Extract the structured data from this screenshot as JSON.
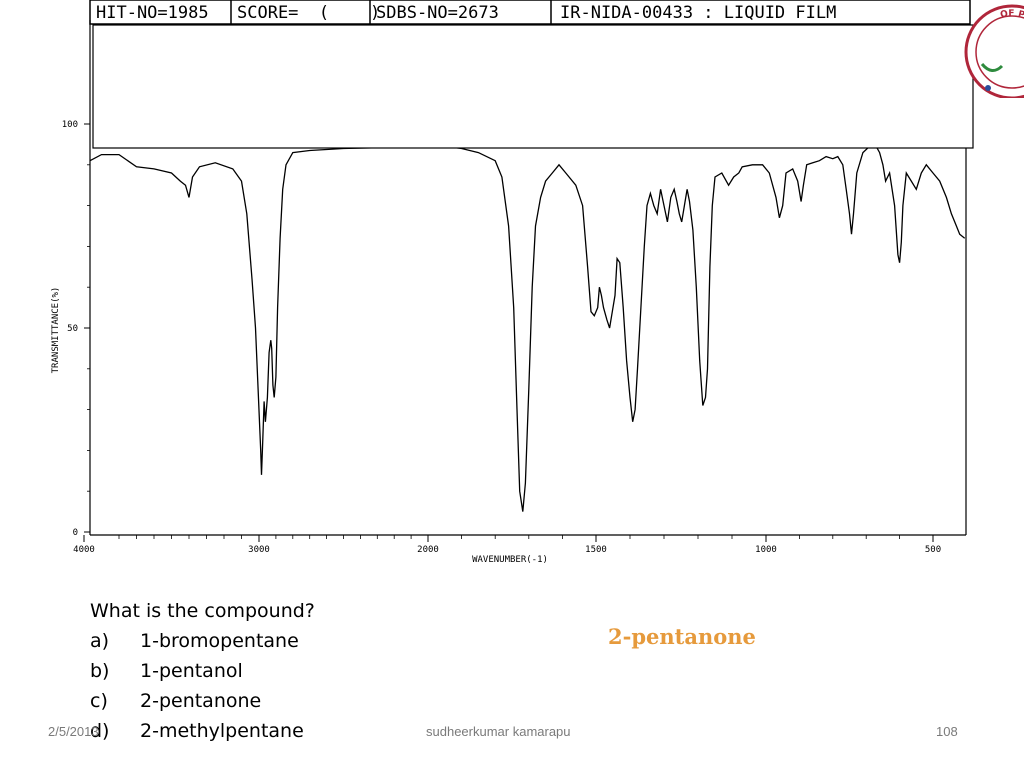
{
  "header": {
    "hit_no": "HIT-NO=1985",
    "score": "SCORE=  (    )",
    "sdbs_no": "SDBS-NO=2673",
    "sample": "IR-NIDA-00433 : LIQUID FILM"
  },
  "seal": {
    "text": "OF PHARMACY",
    "color": "#c0392b"
  },
  "chart_data": {
    "type": "line",
    "title": "",
    "xlabel": "WAVENUMBER(-1)",
    "ylabel": "TRANSMITTANCE(%)",
    "xlim": [
      4000,
      400
    ],
    "ylim": [
      0,
      100
    ],
    "x_reversed": true,
    "x_ticks": [
      "4000",
      "3000",
      "2000",
      "1500",
      "1000",
      "500"
    ],
    "x_tick_values": [
      4000,
      3000,
      2000,
      1500,
      1000,
      500
    ],
    "y_ticks": [
      "0",
      "50",
      "100"
    ],
    "y_tick_values": [
      0,
      50,
      100
    ],
    "grid": false,
    "series": [
      {
        "color": "#000000",
        "points": [
          [
            4000,
            91
          ],
          [
            3900,
            92.5
          ],
          [
            3800,
            92.5
          ],
          [
            3700,
            89.5
          ],
          [
            3600,
            89
          ],
          [
            3500,
            88
          ],
          [
            3450,
            86
          ],
          [
            3420,
            85
          ],
          [
            3400,
            82
          ],
          [
            3380,
            87
          ],
          [
            3340,
            89.5
          ],
          [
            3250,
            90.5
          ],
          [
            3150,
            89
          ],
          [
            3100,
            86
          ],
          [
            3070,
            78
          ],
          [
            3040,
            62
          ],
          [
            3020,
            50
          ],
          [
            3005,
            35
          ],
          [
            2990,
            20
          ],
          [
            2985,
            14
          ],
          [
            2978,
            22
          ],
          [
            2970,
            32
          ],
          [
            2962,
            27
          ],
          [
            2950,
            33
          ],
          [
            2940,
            44
          ],
          [
            2930,
            47
          ],
          [
            2925,
            45
          ],
          [
            2918,
            36
          ],
          [
            2910,
            33
          ],
          [
            2900,
            38
          ],
          [
            2890,
            55
          ],
          [
            2875,
            72
          ],
          [
            2860,
            84
          ],
          [
            2840,
            90
          ],
          [
            2800,
            93
          ],
          [
            2700,
            93.5
          ],
          [
            2500,
            94
          ],
          [
            2300,
            94.2
          ],
          [
            2100,
            94.5
          ],
          [
            1950,
            94.5
          ],
          [
            1900,
            94
          ],
          [
            1850,
            93
          ],
          [
            1800,
            91
          ],
          [
            1780,
            87
          ],
          [
            1760,
            75
          ],
          [
            1745,
            55
          ],
          [
            1735,
            30
          ],
          [
            1727,
            10
          ],
          [
            1718,
            5
          ],
          [
            1710,
            12
          ],
          [
            1700,
            35
          ],
          [
            1690,
            60
          ],
          [
            1680,
            75
          ],
          [
            1665,
            82
          ],
          [
            1650,
            86
          ],
          [
            1630,
            88
          ],
          [
            1610,
            90
          ],
          [
            1590,
            88
          ],
          [
            1560,
            85
          ],
          [
            1540,
            80
          ],
          [
            1525,
            65
          ],
          [
            1515,
            54
          ],
          [
            1505,
            53
          ],
          [
            1495,
            55
          ],
          [
            1490,
            60
          ],
          [
            1484,
            58
          ],
          [
            1478,
            55
          ],
          [
            1468,
            52
          ],
          [
            1460,
            50
          ],
          [
            1452,
            54
          ],
          [
            1444,
            58
          ],
          [
            1438,
            67
          ],
          [
            1430,
            66
          ],
          [
            1420,
            55
          ],
          [
            1410,
            42
          ],
          [
            1400,
            33
          ],
          [
            1392,
            27
          ],
          [
            1385,
            30
          ],
          [
            1378,
            40
          ],
          [
            1368,
            55
          ],
          [
            1358,
            70
          ],
          [
            1350,
            80
          ],
          [
            1340,
            83
          ],
          [
            1330,
            80
          ],
          [
            1320,
            78
          ],
          [
            1310,
            84
          ],
          [
            1300,
            80
          ],
          [
            1290,
            76
          ],
          [
            1280,
            82
          ],
          [
            1270,
            84
          ],
          [
            1262,
            81
          ],
          [
            1255,
            78
          ],
          [
            1248,
            76
          ],
          [
            1240,
            80
          ],
          [
            1232,
            84
          ],
          [
            1225,
            81
          ],
          [
            1215,
            74
          ],
          [
            1205,
            60
          ],
          [
            1195,
            42
          ],
          [
            1186,
            31
          ],
          [
            1178,
            33
          ],
          [
            1172,
            40
          ],
          [
            1165,
            65
          ],
          [
            1158,
            80
          ],
          [
            1150,
            87
          ],
          [
            1130,
            88
          ],
          [
            1110,
            85
          ],
          [
            1095,
            87
          ],
          [
            1080,
            88
          ],
          [
            1070,
            89.5
          ],
          [
            1040,
            90
          ],
          [
            1010,
            90
          ],
          [
            990,
            88
          ],
          [
            970,
            82
          ],
          [
            960,
            77
          ],
          [
            950,
            80
          ],
          [
            940,
            88
          ],
          [
            920,
            89
          ],
          [
            905,
            86
          ],
          [
            895,
            81
          ],
          [
            888,
            85
          ],
          [
            878,
            90
          ],
          [
            860,
            90.5
          ],
          [
            840,
            91
          ],
          [
            820,
            92
          ],
          [
            800,
            91.5
          ],
          [
            785,
            92
          ],
          [
            770,
            90
          ],
          [
            760,
            84
          ],
          [
            750,
            78
          ],
          [
            744,
            73
          ],
          [
            738,
            78
          ],
          [
            728,
            88
          ],
          [
            710,
            93
          ],
          [
            690,
            94.5
          ],
          [
            670,
            94.5
          ],
          [
            660,
            93
          ],
          [
            650,
            90
          ],
          [
            642,
            86
          ],
          [
            630,
            88
          ],
          [
            615,
            80
          ],
          [
            605,
            68
          ],
          [
            600,
            66
          ],
          [
            595,
            71
          ],
          [
            590,
            80
          ],
          [
            580,
            88
          ],
          [
            565,
            86
          ],
          [
            550,
            84
          ],
          [
            535,
            88
          ],
          [
            520,
            90
          ],
          [
            500,
            88
          ],
          [
            480,
            86
          ],
          [
            460,
            82
          ],
          [
            445,
            78
          ],
          [
            430,
            75
          ],
          [
            420,
            73
          ],
          [
            405,
            72
          ]
        ]
      }
    ]
  },
  "question": {
    "prompt": "What is the compound?",
    "options": [
      {
        "letter": "a)",
        "text": "1-bromopentane"
      },
      {
        "letter": "b)",
        "text": "1-pentanol"
      },
      {
        "letter": "c)",
        "text": "2-pentanone"
      },
      {
        "letter": "d)",
        "text": "2-methylpentane"
      }
    ]
  },
  "answer": "2-pentanone",
  "footer": {
    "date": "2/5/2013",
    "author": "sudheerkumar kamarapu",
    "page": "108"
  }
}
